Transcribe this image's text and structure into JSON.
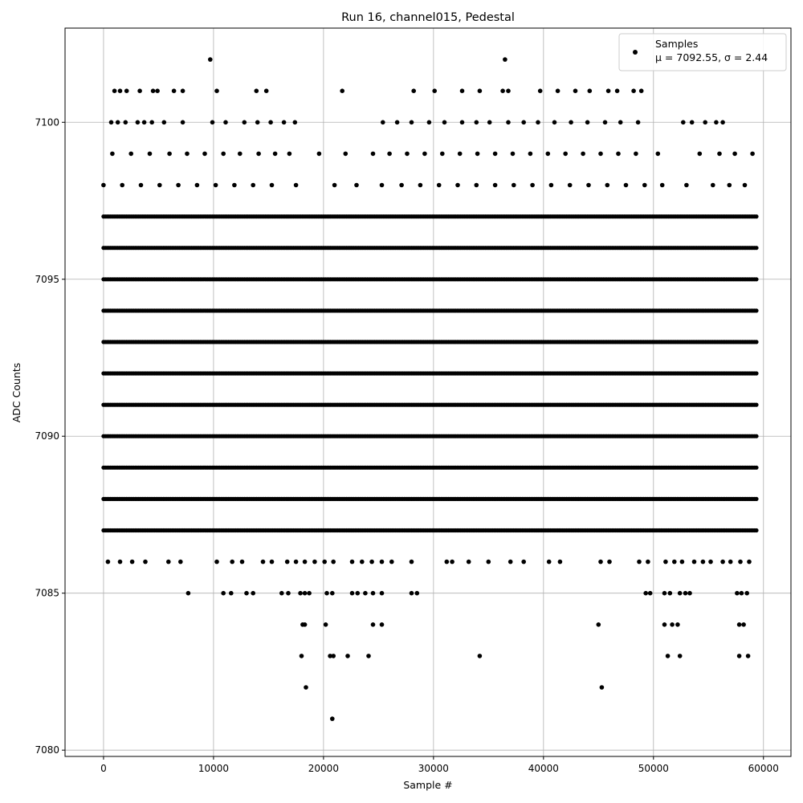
{
  "chart_data": {
    "type": "scatter",
    "title": "Run 16, channel015, Pedestal",
    "xlabel": "Sample #",
    "ylabel": "ADC Counts",
    "xlim": [
      -3500,
      62500
    ],
    "ylim": [
      7079.8,
      7103.0
    ],
    "xticks": [
      0,
      10000,
      20000,
      30000,
      40000,
      50000,
      60000
    ],
    "yticks": [
      7080,
      7085,
      7090,
      7095,
      7100
    ],
    "grid": true,
    "legend": {
      "placement": "top-right",
      "entries": [
        {
          "label": "Samples",
          "stats": "μ = 7092.55, σ = 2.44",
          "marker": "dot",
          "color": "#000000"
        }
      ]
    },
    "colors": {
      "points": "#000000",
      "grid": "#b0b0b0"
    },
    "series": [
      {
        "name": "Samples",
        "continuous_levels": [
          {
            "y": 7097,
            "x_range": [
              0,
              59500
            ]
          },
          {
            "y": 7096,
            "x_range": [
              0,
              59500
            ]
          },
          {
            "y": 7095,
            "x_range": [
              0,
              59500
            ]
          },
          {
            "y": 7094,
            "x_range": [
              0,
              59500
            ]
          },
          {
            "y": 7093,
            "x_range": [
              0,
              59500
            ]
          },
          {
            "y": 7092,
            "x_range": [
              0,
              59500
            ]
          },
          {
            "y": 7091,
            "x_range": [
              0,
              59500
            ]
          },
          {
            "y": 7090,
            "x_range": [
              0,
              59500
            ]
          },
          {
            "y": 7089,
            "x_range": [
              0,
              59500
            ]
          },
          {
            "y": 7088,
            "x_range": [
              0,
              59500
            ]
          },
          {
            "y": 7087,
            "x_range": [
              0,
              59500
            ]
          }
        ],
        "points": [
          {
            "x": 9700,
            "y": 7102
          },
          {
            "x": 36500,
            "y": 7102
          },
          {
            "x": 1000,
            "y": 7101
          },
          {
            "x": 1500,
            "y": 7101
          },
          {
            "x": 2100,
            "y": 7101
          },
          {
            "x": 3300,
            "y": 7101
          },
          {
            "x": 4500,
            "y": 7101
          },
          {
            "x": 4900,
            "y": 7101
          },
          {
            "x": 6400,
            "y": 7101
          },
          {
            "x": 7200,
            "y": 7101
          },
          {
            "x": 10300,
            "y": 7101
          },
          {
            "x": 13900,
            "y": 7101
          },
          {
            "x": 14800,
            "y": 7101
          },
          {
            "x": 21700,
            "y": 7101
          },
          {
            "x": 28200,
            "y": 7101
          },
          {
            "x": 30100,
            "y": 7101
          },
          {
            "x": 32600,
            "y": 7101
          },
          {
            "x": 34200,
            "y": 7101
          },
          {
            "x": 36300,
            "y": 7101
          },
          {
            "x": 36800,
            "y": 7101
          },
          {
            "x": 39700,
            "y": 7101
          },
          {
            "x": 41300,
            "y": 7101
          },
          {
            "x": 42900,
            "y": 7101
          },
          {
            "x": 44200,
            "y": 7101
          },
          {
            "x": 45900,
            "y": 7101
          },
          {
            "x": 46700,
            "y": 7101
          },
          {
            "x": 48200,
            "y": 7101
          },
          {
            "x": 48900,
            "y": 7101
          },
          {
            "x": 700,
            "y": 7100
          },
          {
            "x": 1300,
            "y": 7100
          },
          {
            "x": 2000,
            "y": 7100
          },
          {
            "x": 3100,
            "y": 7100
          },
          {
            "x": 3700,
            "y": 7100
          },
          {
            "x": 4400,
            "y": 7100
          },
          {
            "x": 5500,
            "y": 7100
          },
          {
            "x": 7200,
            "y": 7100
          },
          {
            "x": 9900,
            "y": 7100
          },
          {
            "x": 11100,
            "y": 7100
          },
          {
            "x": 12800,
            "y": 7100
          },
          {
            "x": 14000,
            "y": 7100
          },
          {
            "x": 15200,
            "y": 7100
          },
          {
            "x": 16400,
            "y": 7100
          },
          {
            "x": 17400,
            "y": 7100
          },
          {
            "x": 25400,
            "y": 7100
          },
          {
            "x": 26700,
            "y": 7100
          },
          {
            "x": 28000,
            "y": 7100
          },
          {
            "x": 29600,
            "y": 7100
          },
          {
            "x": 31000,
            "y": 7100
          },
          {
            "x": 32600,
            "y": 7100
          },
          {
            "x": 33900,
            "y": 7100
          },
          {
            "x": 35100,
            "y": 7100
          },
          {
            "x": 36800,
            "y": 7100
          },
          {
            "x": 38200,
            "y": 7100
          },
          {
            "x": 39500,
            "y": 7100
          },
          {
            "x": 41000,
            "y": 7100
          },
          {
            "x": 42500,
            "y": 7100
          },
          {
            "x": 44000,
            "y": 7100
          },
          {
            "x": 45600,
            "y": 7100
          },
          {
            "x": 47000,
            "y": 7100
          },
          {
            "x": 48600,
            "y": 7100
          },
          {
            "x": 52700,
            "y": 7100
          },
          {
            "x": 53500,
            "y": 7100
          },
          {
            "x": 54700,
            "y": 7100
          },
          {
            "x": 55700,
            "y": 7100
          },
          {
            "x": 56300,
            "y": 7100
          },
          {
            "x": 800,
            "y": 7099
          },
          {
            "x": 2500,
            "y": 7099
          },
          {
            "x": 4200,
            "y": 7099
          },
          {
            "x": 6000,
            "y": 7099
          },
          {
            "x": 7600,
            "y": 7099
          },
          {
            "x": 9200,
            "y": 7099
          },
          {
            "x": 10900,
            "y": 7099
          },
          {
            "x": 12400,
            "y": 7099
          },
          {
            "x": 14100,
            "y": 7099
          },
          {
            "x": 15600,
            "y": 7099
          },
          {
            "x": 16900,
            "y": 7099
          },
          {
            "x": 19600,
            "y": 7099
          },
          {
            "x": 22000,
            "y": 7099
          },
          {
            "x": 24500,
            "y": 7099
          },
          {
            "x": 26000,
            "y": 7099
          },
          {
            "x": 27600,
            "y": 7099
          },
          {
            "x": 29200,
            "y": 7099
          },
          {
            "x": 30800,
            "y": 7099
          },
          {
            "x": 32400,
            "y": 7099
          },
          {
            "x": 34000,
            "y": 7099
          },
          {
            "x": 35600,
            "y": 7099
          },
          {
            "x": 37200,
            "y": 7099
          },
          {
            "x": 38800,
            "y": 7099
          },
          {
            "x": 40400,
            "y": 7099
          },
          {
            "x": 42000,
            "y": 7099
          },
          {
            "x": 43600,
            "y": 7099
          },
          {
            "x": 45200,
            "y": 7099
          },
          {
            "x": 46800,
            "y": 7099
          },
          {
            "x": 48400,
            "y": 7099
          },
          {
            "x": 50400,
            "y": 7099
          },
          {
            "x": 54200,
            "y": 7099
          },
          {
            "x": 56000,
            "y": 7099
          },
          {
            "x": 57400,
            "y": 7099
          },
          {
            "x": 59000,
            "y": 7099
          },
          {
            "x": 0,
            "y": 7098
          },
          {
            "x": 1700,
            "y": 7098
          },
          {
            "x": 3400,
            "y": 7098
          },
          {
            "x": 5100,
            "y": 7098
          },
          {
            "x": 6800,
            "y": 7098
          },
          {
            "x": 8500,
            "y": 7098
          },
          {
            "x": 10200,
            "y": 7098
          },
          {
            "x": 11900,
            "y": 7098
          },
          {
            "x": 13600,
            "y": 7098
          },
          {
            "x": 15300,
            "y": 7098
          },
          {
            "x": 17500,
            "y": 7098
          },
          {
            "x": 21000,
            "y": 7098
          },
          {
            "x": 23000,
            "y": 7098
          },
          {
            "x": 25300,
            "y": 7098
          },
          {
            "x": 27100,
            "y": 7098
          },
          {
            "x": 28800,
            "y": 7098
          },
          {
            "x": 30500,
            "y": 7098
          },
          {
            "x": 32200,
            "y": 7098
          },
          {
            "x": 33900,
            "y": 7098
          },
          {
            "x": 35600,
            "y": 7098
          },
          {
            "x": 37300,
            "y": 7098
          },
          {
            "x": 39000,
            "y": 7098
          },
          {
            "x": 40700,
            "y": 7098
          },
          {
            "x": 42400,
            "y": 7098
          },
          {
            "x": 44100,
            "y": 7098
          },
          {
            "x": 45800,
            "y": 7098
          },
          {
            "x": 47500,
            "y": 7098
          },
          {
            "x": 49200,
            "y": 7098
          },
          {
            "x": 50800,
            "y": 7098
          },
          {
            "x": 53000,
            "y": 7098
          },
          {
            "x": 55400,
            "y": 7098
          },
          {
            "x": 56900,
            "y": 7098
          },
          {
            "x": 58300,
            "y": 7098
          },
          {
            "x": 400,
            "y": 7086
          },
          {
            "x": 1500,
            "y": 7086
          },
          {
            "x": 2600,
            "y": 7086
          },
          {
            "x": 3800,
            "y": 7086
          },
          {
            "x": 5900,
            "y": 7086
          },
          {
            "x": 7000,
            "y": 7086
          },
          {
            "x": 10300,
            "y": 7086
          },
          {
            "x": 11700,
            "y": 7086
          },
          {
            "x": 12600,
            "y": 7086
          },
          {
            "x": 14500,
            "y": 7086
          },
          {
            "x": 15300,
            "y": 7086
          },
          {
            "x": 16700,
            "y": 7086
          },
          {
            "x": 17500,
            "y": 7086
          },
          {
            "x": 18300,
            "y": 7086
          },
          {
            "x": 19200,
            "y": 7086
          },
          {
            "x": 20100,
            "y": 7086
          },
          {
            "x": 20900,
            "y": 7086
          },
          {
            "x": 22600,
            "y": 7086
          },
          {
            "x": 23500,
            "y": 7086
          },
          {
            "x": 24400,
            "y": 7086
          },
          {
            "x": 25300,
            "y": 7086
          },
          {
            "x": 26200,
            "y": 7086
          },
          {
            "x": 28000,
            "y": 7086
          },
          {
            "x": 31200,
            "y": 7086
          },
          {
            "x": 31700,
            "y": 7086
          },
          {
            "x": 33200,
            "y": 7086
          },
          {
            "x": 35000,
            "y": 7086
          },
          {
            "x": 37000,
            "y": 7086
          },
          {
            "x": 38200,
            "y": 7086
          },
          {
            "x": 40500,
            "y": 7086
          },
          {
            "x": 41500,
            "y": 7086
          },
          {
            "x": 45200,
            "y": 7086
          },
          {
            "x": 46000,
            "y": 7086
          },
          {
            "x": 48700,
            "y": 7086
          },
          {
            "x": 49500,
            "y": 7086
          },
          {
            "x": 51100,
            "y": 7086
          },
          {
            "x": 51900,
            "y": 7086
          },
          {
            "x": 52600,
            "y": 7086
          },
          {
            "x": 53700,
            "y": 7086
          },
          {
            "x": 54500,
            "y": 7086
          },
          {
            "x": 55200,
            "y": 7086
          },
          {
            "x": 56300,
            "y": 7086
          },
          {
            "x": 57000,
            "y": 7086
          },
          {
            "x": 57900,
            "y": 7086
          },
          {
            "x": 58700,
            "y": 7086
          },
          {
            "x": 7700,
            "y": 7085
          },
          {
            "x": 10900,
            "y": 7085
          },
          {
            "x": 11600,
            "y": 7085
          },
          {
            "x": 13000,
            "y": 7085
          },
          {
            "x": 13600,
            "y": 7085
          },
          {
            "x": 16200,
            "y": 7085
          },
          {
            "x": 16800,
            "y": 7085
          },
          {
            "x": 17900,
            "y": 7085
          },
          {
            "x": 18300,
            "y": 7085
          },
          {
            "x": 18700,
            "y": 7085
          },
          {
            "x": 20300,
            "y": 7085
          },
          {
            "x": 20800,
            "y": 7085
          },
          {
            "x": 22600,
            "y": 7085
          },
          {
            "x": 23100,
            "y": 7085
          },
          {
            "x": 23800,
            "y": 7085
          },
          {
            "x": 24500,
            "y": 7085
          },
          {
            "x": 25300,
            "y": 7085
          },
          {
            "x": 28000,
            "y": 7085
          },
          {
            "x": 28500,
            "y": 7085
          },
          {
            "x": 49300,
            "y": 7085
          },
          {
            "x": 49700,
            "y": 7085
          },
          {
            "x": 51000,
            "y": 7085
          },
          {
            "x": 51500,
            "y": 7085
          },
          {
            "x": 52400,
            "y": 7085
          },
          {
            "x": 52900,
            "y": 7085
          },
          {
            "x": 53300,
            "y": 7085
          },
          {
            "x": 57600,
            "y": 7085
          },
          {
            "x": 58000,
            "y": 7085
          },
          {
            "x": 58500,
            "y": 7085
          },
          {
            "x": 18100,
            "y": 7084
          },
          {
            "x": 18300,
            "y": 7084
          },
          {
            "x": 20200,
            "y": 7084
          },
          {
            "x": 24500,
            "y": 7084
          },
          {
            "x": 25300,
            "y": 7084
          },
          {
            "x": 45000,
            "y": 7084
          },
          {
            "x": 51000,
            "y": 7084
          },
          {
            "x": 51700,
            "y": 7084
          },
          {
            "x": 52200,
            "y": 7084
          },
          {
            "x": 57800,
            "y": 7084
          },
          {
            "x": 58200,
            "y": 7084
          },
          {
            "x": 18000,
            "y": 7083
          },
          {
            "x": 20600,
            "y": 7083
          },
          {
            "x": 20900,
            "y": 7083
          },
          {
            "x": 22200,
            "y": 7083
          },
          {
            "x": 24100,
            "y": 7083
          },
          {
            "x": 34200,
            "y": 7083
          },
          {
            "x": 51300,
            "y": 7083
          },
          {
            "x": 52400,
            "y": 7083
          },
          {
            "x": 57800,
            "y": 7083
          },
          {
            "x": 58600,
            "y": 7083
          },
          {
            "x": 18400,
            "y": 7082
          },
          {
            "x": 45300,
            "y": 7082
          },
          {
            "x": 20800,
            "y": 7081
          }
        ]
      }
    ]
  }
}
